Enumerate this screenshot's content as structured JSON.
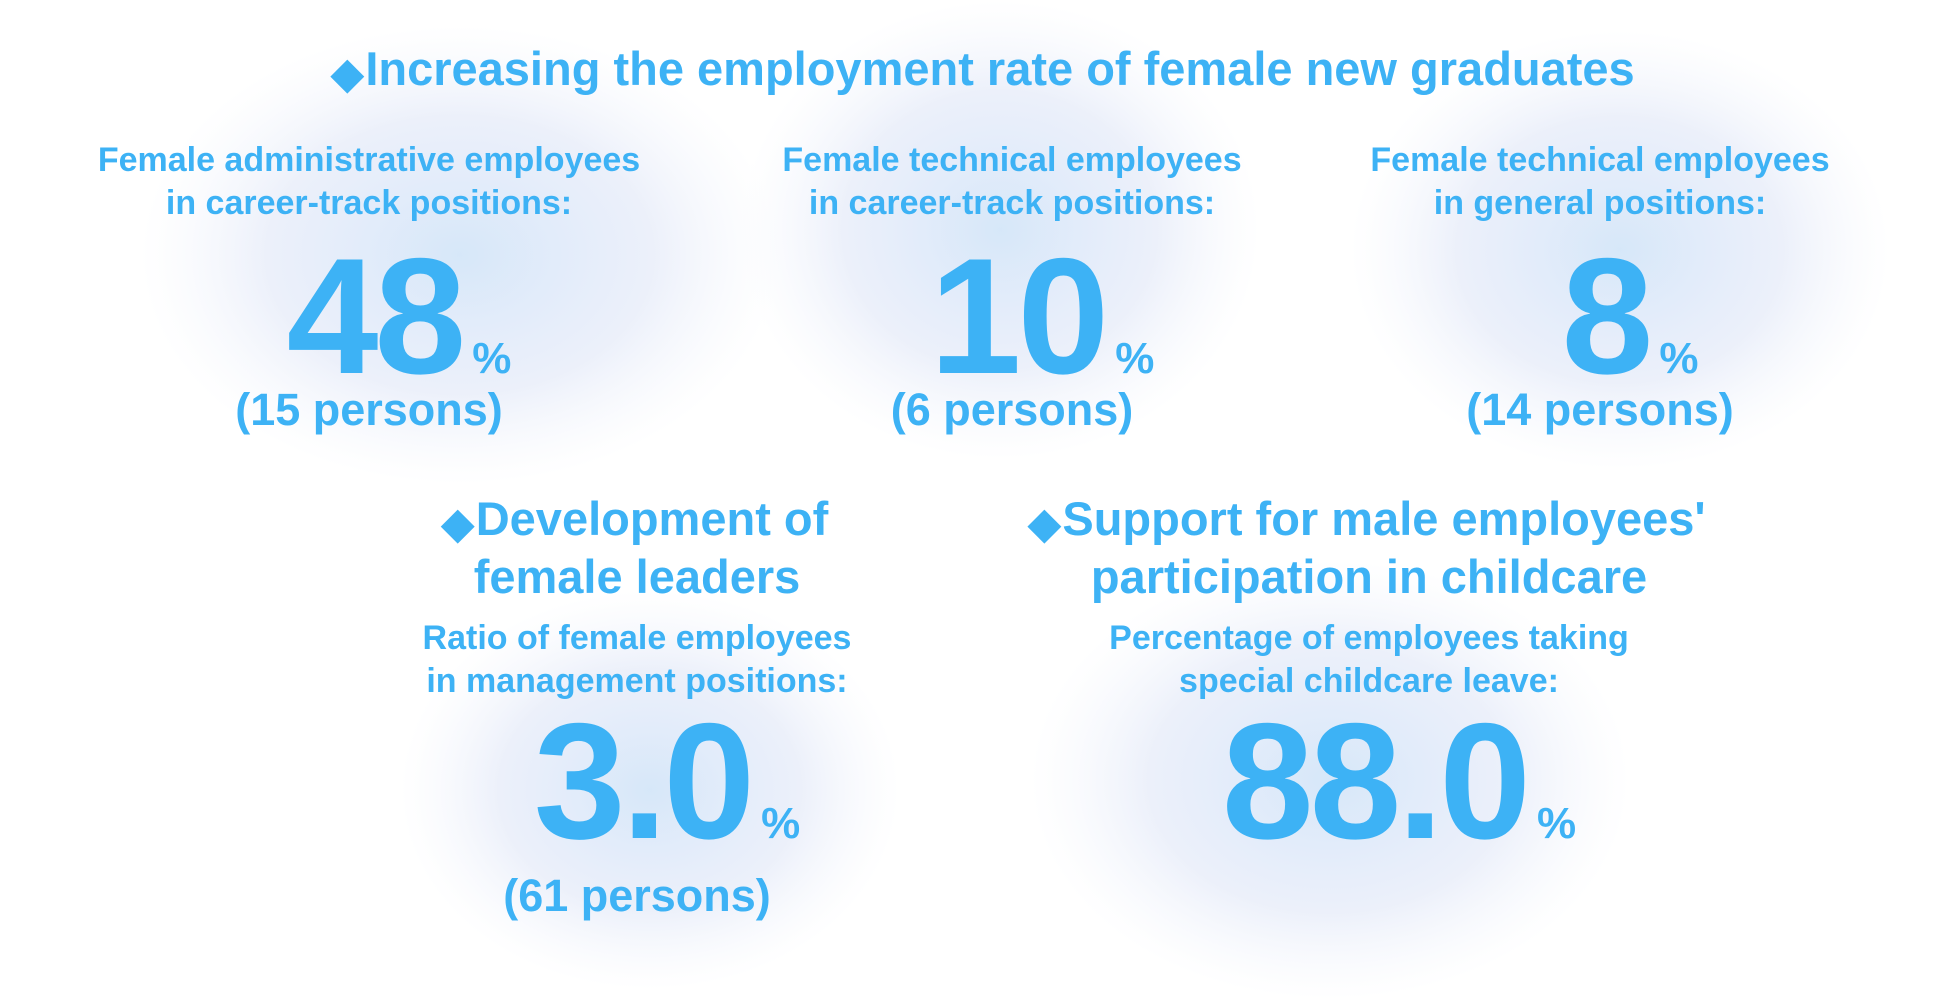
{
  "header": {
    "title": "Increasing the employment rate of female new graduates"
  },
  "stats": [
    {
      "label_lines": [
        "Female administrative employees",
        "in career-track positions:"
      ],
      "value": "48",
      "unit": "%",
      "note": "(15 persons)"
    },
    {
      "label_lines": [
        "Female technical employees",
        "in career-track positions:"
      ],
      "value": "10",
      "unit": "%",
      "note": "(6 persons)"
    },
    {
      "label_lines": [
        "Female technical employees",
        "in general positions:"
      ],
      "value": "8",
      "unit": "%",
      "note": "(14 persons)"
    }
  ],
  "sections": [
    {
      "title_lines": [
        "Development of",
        "female leaders"
      ],
      "label_lines": [
        "Ratio of female employees",
        "in management positions:"
      ],
      "value": "3.0",
      "unit": "%",
      "note": "(61 persons)"
    },
    {
      "title_lines": [
        "Support for male employees'",
        "participation in childcare"
      ],
      "label_lines": [
        "Percentage of employees taking",
        "special childcare leave:"
      ],
      "value": "88.0",
      "unit": "%"
    }
  ]
}
